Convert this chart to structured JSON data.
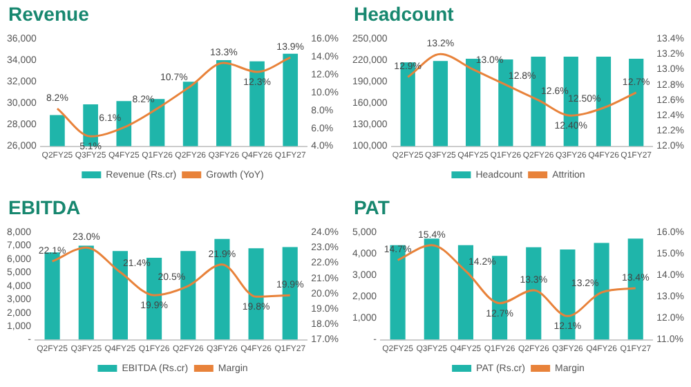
{
  "chart_data": [
    {
      "type": "bar",
      "title": "Revenue",
      "categories": [
        "Q2FY25",
        "Q3FY25",
        "Q4FY25",
        "Q1FY26",
        "Q2FY26",
        "Q3FY26",
        "Q4FY26",
        "Q1FY27"
      ],
      "series": [
        {
          "name": "Revenue (Rs.cr)",
          "color": "#1fb5aa",
          "values": [
            28900,
            29900,
            30200,
            30400,
            32000,
            34000,
            33900,
            34600
          ]
        },
        {
          "type": "line",
          "axis": "y2",
          "name": "Growth (YoY)",
          "color": "#e8823a",
          "values": [
            8.2,
            5.1,
            6.1,
            8.2,
            10.7,
            13.3,
            12.3,
            13.9
          ],
          "value_labels": [
            "8.2%",
            "5.1%",
            "6.1%",
            "8.2%",
            "10.7%",
            "13.3%",
            "12.3%",
            "13.9%"
          ]
        }
      ],
      "ylim": [
        26000,
        36000
      ],
      "yticks": [
        {
          "value": 26000,
          "label": "26,000"
        },
        {
          "value": 28000,
          "label": "28,000"
        },
        {
          "value": 30000,
          "label": "30,000"
        },
        {
          "value": 32000,
          "label": "32,000"
        },
        {
          "value": 34000,
          "label": "34,000"
        },
        {
          "value": 36000,
          "label": "36,000"
        }
      ],
      "y2lim": [
        4,
        16
      ],
      "y2ticks": [
        {
          "value": 4,
          "label": "4.0%"
        },
        {
          "value": 6,
          "label": "6.0%"
        },
        {
          "value": 8,
          "label": "8.0%"
        },
        {
          "value": 10,
          "label": "10.0%"
        },
        {
          "value": 12,
          "label": "12.0%"
        },
        {
          "value": 14,
          "label": "14.0%"
        },
        {
          "value": 16,
          "label": "16.0%"
        }
      ],
      "legend": "bottom",
      "marker": "none",
      "grid": false
    },
    {
      "type": "bar",
      "title": "Headcount",
      "categories": [
        "Q2FY25",
        "Q3FY25",
        "Q4FY25",
        "Q1FY26",
        "Q2FY26",
        "Q3FY26",
        "Q4FY26",
        "Q1FY27"
      ],
      "series": [
        {
          "name": "Headcount",
          "color": "#1fb5aa",
          "values": [
            217000,
            219000,
            222000,
            221000,
            225000,
            225000,
            225000,
            222000
          ]
        },
        {
          "type": "line",
          "axis": "y2",
          "name": "Attrition",
          "color": "#e8823a",
          "values": [
            12.9,
            13.2,
            13.0,
            12.8,
            12.6,
            12.4,
            12.5,
            12.7
          ],
          "value_labels": [
            "12.9%",
            "13.2%",
            "13.0%",
            "12.8%",
            "12.6%",
            "12.40%",
            "12.50%",
            "12.7%"
          ]
        }
      ],
      "ylim": [
        100000,
        250000
      ],
      "yticks": [
        {
          "value": 100000,
          "label": "100,000"
        },
        {
          "value": 130000,
          "label": "130,000"
        },
        {
          "value": 160000,
          "label": "160,000"
        },
        {
          "value": 190000,
          "label": "190,000"
        },
        {
          "value": 220000,
          "label": "220,000"
        },
        {
          "value": 250000,
          "label": "250,000"
        }
      ],
      "y2lim": [
        12,
        13.4
      ],
      "y2ticks": [
        {
          "value": 12,
          "label": "12.0%"
        },
        {
          "value": 12.2,
          "label": "12.2%"
        },
        {
          "value": 12.4,
          "label": "12.4%"
        },
        {
          "value": 12.6,
          "label": "12.6%"
        },
        {
          "value": 12.8,
          "label": "12.8%"
        },
        {
          "value": 13,
          "label": "13.0%"
        },
        {
          "value": 13.2,
          "label": "13.2%"
        },
        {
          "value": 13.4,
          "label": "13.4%"
        }
      ],
      "legend": "bottom",
      "marker": "none",
      "grid": false
    },
    {
      "type": "bar",
      "title": "EBITDA",
      "categories": [
        "Q2FY25",
        "Q3FY25",
        "Q4FY25",
        "Q1FY26",
        "Q2FY26",
        "Q3FY26",
        "Q4FY26",
        "Q1FY27"
      ],
      "series": [
        {
          "name": "EBITDA (Rs.cr)",
          "color": "#1fb5aa",
          "values": [
            6500,
            7000,
            6600,
            6100,
            6600,
            7500,
            6800,
            6900
          ]
        },
        {
          "type": "line",
          "axis": "y2",
          "name": "Margin",
          "color": "#e8823a",
          "values": [
            22.1,
            23.0,
            21.4,
            19.9,
            20.5,
            21.9,
            19.8,
            19.9
          ],
          "value_labels": [
            "22.1%",
            "23.0%",
            "21.4%",
            "19.9%",
            "20.5%",
            "21.9%",
            "19.8%",
            "19.9%"
          ]
        }
      ],
      "ylim": [
        0,
        8000
      ],
      "yticks": [
        {
          "value": 0,
          "label": "-"
        },
        {
          "value": 1000,
          "label": "1,000"
        },
        {
          "value": 2000,
          "label": "2,000"
        },
        {
          "value": 3000,
          "label": "3,000"
        },
        {
          "value": 4000,
          "label": "4,000"
        },
        {
          "value": 5000,
          "label": "5,000"
        },
        {
          "value": 6000,
          "label": "6,000"
        },
        {
          "value": 7000,
          "label": "7,000"
        },
        {
          "value": 8000,
          "label": "8,000"
        }
      ],
      "y2lim": [
        17,
        24
      ],
      "y2ticks": [
        {
          "value": 17,
          "label": "17.0%"
        },
        {
          "value": 18,
          "label": "18.0%"
        },
        {
          "value": 19,
          "label": "19.0%"
        },
        {
          "value": 20,
          "label": "20.0%"
        },
        {
          "value": 21,
          "label": "21.0%"
        },
        {
          "value": 22,
          "label": "22.0%"
        },
        {
          "value": 23,
          "label": "23.0%"
        },
        {
          "value": 24,
          "label": "24.0%"
        }
      ],
      "legend": "bottom",
      "marker": "none",
      "grid": false
    },
    {
      "type": "bar",
      "title": "PAT",
      "categories": [
        "Q2FY25",
        "Q3FY25",
        "Q4FY25",
        "Q1FY26",
        "Q2FY26",
        "Q3FY26",
        "Q4FY26",
        "Q1FY27"
      ],
      "series": [
        {
          "name": "PAT (Rs.cr)",
          "color": "#1fb5aa",
          "values": [
            4400,
            4700,
            4400,
            3900,
            4300,
            4200,
            4500,
            4700
          ]
        },
        {
          "type": "line",
          "axis": "y2",
          "name": "Margin",
          "color": "#e8823a",
          "values": [
            14.7,
            15.4,
            14.2,
            12.7,
            13.3,
            12.1,
            13.2,
            13.4
          ],
          "value_labels": [
            "14.7%",
            "15.4%",
            "14.2%",
            "12.7%",
            "13.3%",
            "12.1%",
            "13.2%",
            "13.4%"
          ]
        }
      ],
      "ylim": [
        0,
        5000
      ],
      "yticks": [
        {
          "value": 0,
          "label": "-"
        },
        {
          "value": 1000,
          "label": "1,000"
        },
        {
          "value": 2000,
          "label": "2,000"
        },
        {
          "value": 3000,
          "label": "3,000"
        },
        {
          "value": 4000,
          "label": "4,000"
        },
        {
          "value": 5000,
          "label": "5,000"
        }
      ],
      "y2lim": [
        11,
        16
      ],
      "y2ticks": [
        {
          "value": 11,
          "label": "11.0%"
        },
        {
          "value": 12,
          "label": "12.0%"
        },
        {
          "value": 13,
          "label": "13.0%"
        },
        {
          "value": 14,
          "label": "14.0%"
        },
        {
          "value": 15,
          "label": "15.0%"
        },
        {
          "value": 16,
          "label": "16.0%"
        }
      ],
      "legend": "bottom",
      "marker": "none",
      "grid": false
    }
  ]
}
